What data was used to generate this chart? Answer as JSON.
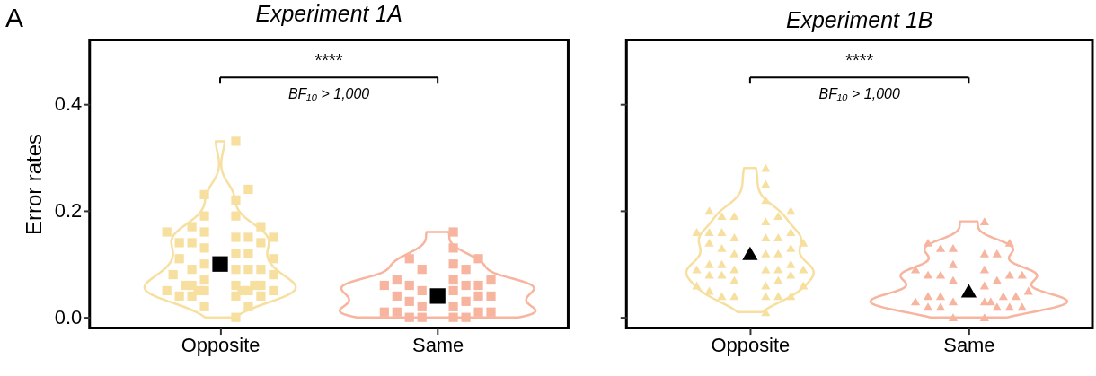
{
  "chart_data": [
    {
      "type": "scatter",
      "title": "Experiment 1A",
      "ylabel": "Error rates",
      "categories": [
        "Opposite",
        "Same"
      ],
      "ylim": [
        -0.02,
        0.52
      ],
      "yticks": [
        {
          "value": 0,
          "label": "0.0"
        },
        {
          "value": 0.2,
          "label": "0.2"
        },
        {
          "value": 0.4,
          "label": "0.4"
        }
      ],
      "grid": false,
      "annotations": [
        "****",
        "BF₁₀ > 1,000",
        "A"
      ],
      "series": [
        {
          "marker": "square",
          "color": "#f7dfa0",
          "x": [
            "Opposite",
            "Opposite",
            "Opposite",
            "Opposite",
            "Opposite",
            "Opposite",
            "Opposite",
            "Opposite",
            "Opposite",
            "Opposite",
            "Opposite",
            "Opposite",
            "Opposite",
            "Opposite",
            "Opposite",
            "Opposite",
            "Opposite",
            "Opposite",
            "Opposite",
            "Opposite",
            "Opposite",
            "Opposite",
            "Opposite",
            "Opposite",
            "Opposite",
            "Opposite",
            "Opposite",
            "Opposite",
            "Opposite",
            "Opposite",
            "Opposite",
            "Opposite",
            "Opposite",
            "Opposite",
            "Opposite",
            "Opposite",
            "Opposite",
            "Opposite",
            "Opposite",
            "Opposite",
            "Opposite",
            "Opposite",
            "Opposite",
            "Opposite",
            "Opposite",
            "Opposite",
            "Opposite"
          ],
          "values": [
            0.33,
            0.24,
            0.22,
            0.23,
            0.19,
            0.19,
            0.17,
            0.16,
            0.17,
            0.16,
            0.15,
            0.15,
            0.15,
            0.14,
            0.14,
            0.14,
            0.13,
            0.12,
            0.12,
            0.11,
            0.11,
            0.1,
            0.09,
            0.09,
            0.09,
            0.09,
            0.08,
            0.07,
            0.08,
            0.06,
            0.06,
            0.06,
            0.06,
            0.06,
            0.05,
            0.05,
            0.05,
            0.05,
            0.05,
            0.05,
            0.04,
            0.04,
            0.04,
            0.04,
            0.02,
            0.02,
            0.0
          ]
        },
        {
          "marker": "square",
          "color": "#f7b5a0",
          "x": [
            "Same",
            "Same",
            "Same",
            "Same",
            "Same",
            "Same",
            "Same",
            "Same",
            "Same",
            "Same",
            "Same",
            "Same",
            "Same",
            "Same",
            "Same",
            "Same",
            "Same",
            "Same",
            "Same",
            "Same",
            "Same",
            "Same",
            "Same",
            "Same",
            "Same",
            "Same",
            "Same",
            "Same",
            "Same",
            "Same",
            "Same"
          ],
          "values": [
            0.16,
            0.13,
            0.11,
            0.11,
            0.1,
            0.09,
            0.09,
            0.07,
            0.07,
            0.07,
            0.06,
            0.06,
            0.06,
            0.06,
            0.05,
            0.05,
            0.04,
            0.04,
            0.04,
            0.02,
            0.03,
            0.03,
            0.02,
            0.01,
            0.01,
            0.01,
            0.01,
            0.0,
            0.0,
            0.0,
            0.0
          ]
        },
        {
          "marker": "square",
          "color": "#000000",
          "x": [
            "Opposite",
            "Same"
          ],
          "values": [
            0.1,
            0.04
          ]
        }
      ]
    },
    {
      "type": "scatter",
      "title": "Experiment 1B",
      "categories": [
        "Opposite",
        "Same"
      ],
      "ylim": [
        -0.02,
        0.52
      ],
      "yticks": [
        0,
        0.2,
        0.4
      ],
      "tick_labels": "x",
      "grid": false,
      "annotations": [
        "****",
        "BF₁₀ > 1,000"
      ],
      "series": [
        {
          "marker": "triangle",
          "color": "#f7dfa0",
          "x": [
            "Opposite",
            "Opposite",
            "Opposite",
            "Opposite",
            "Opposite",
            "Opposite",
            "Opposite",
            "Opposite",
            "Opposite",
            "Opposite",
            "Opposite",
            "Opposite",
            "Opposite",
            "Opposite",
            "Opposite",
            "Opposite",
            "Opposite",
            "Opposite",
            "Opposite",
            "Opposite",
            "Opposite",
            "Opposite",
            "Opposite",
            "Opposite",
            "Opposite",
            "Opposite",
            "Opposite",
            "Opposite",
            "Opposite",
            "Opposite",
            "Opposite",
            "Opposite",
            "Opposite",
            "Opposite",
            "Opposite",
            "Opposite",
            "Opposite",
            "Opposite",
            "Opposite",
            "Opposite",
            "Opposite",
            "Opposite",
            "Opposite",
            "Opposite",
            "Opposite",
            "Opposite"
          ],
          "values": [
            0.28,
            0.25,
            0.22,
            0.2,
            0.2,
            0.19,
            0.19,
            0.19,
            0.18,
            0.16,
            0.16,
            0.16,
            0.16,
            0.15,
            0.15,
            0.15,
            0.14,
            0.14,
            0.13,
            0.13,
            0.12,
            0.12,
            0.12,
            0.1,
            0.1,
            0.1,
            0.09,
            0.09,
            0.09,
            0.09,
            0.09,
            0.08,
            0.08,
            0.07,
            0.07,
            0.08,
            0.06,
            0.06,
            0.06,
            0.04,
            0.05,
            0.04,
            0.04,
            0.04,
            0.04,
            0.01
          ]
        },
        {
          "marker": "triangle",
          "color": "#f7b5a0",
          "x": [
            "Same",
            "Same",
            "Same",
            "Same",
            "Same",
            "Same",
            "Same",
            "Same",
            "Same",
            "Same",
            "Same",
            "Same",
            "Same",
            "Same",
            "Same",
            "Same",
            "Same",
            "Same",
            "Same",
            "Same",
            "Same",
            "Same",
            "Same",
            "Same",
            "Same",
            "Same",
            "Same",
            "Same",
            "Same",
            "Same",
            "Same",
            "Same",
            "Same"
          ],
          "values": [
            0.18,
            0.14,
            0.14,
            0.13,
            0.13,
            0.12,
            0.12,
            0.1,
            0.09,
            0.09,
            0.08,
            0.08,
            0.08,
            0.08,
            0.07,
            0.07,
            0.06,
            0.04,
            0.05,
            0.04,
            0.04,
            0.04,
            0.03,
            0.03,
            0.03,
            0.03,
            0.02,
            0.02,
            0.02,
            0.02,
            0.02,
            0.0,
            0.0
          ]
        },
        {
          "marker": "triangle",
          "color": "#000000",
          "x": [
            "Opposite",
            "Same"
          ],
          "values": [
            0.12,
            0.05
          ]
        }
      ]
    }
  ]
}
